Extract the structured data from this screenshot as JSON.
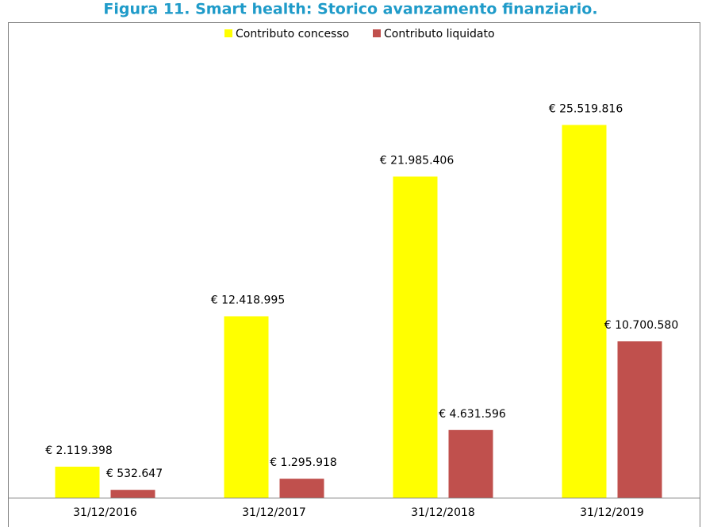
{
  "chart_data": {
    "type": "bar",
    "title": "Figura 11. Smart health: Storico avanzamento finanziario.",
    "categories": [
      "31/12/2016",
      "31/12/2017",
      "31/12/2018",
      "31/12/2019"
    ],
    "series": [
      {
        "name": "Contributo concesso",
        "color": "#ffff00",
        "values": [
          2119398,
          12418995,
          21985406,
          25519816
        ],
        "value_labels": [
          "€ 2.119.398",
          "€ 12.418.995",
          "€ 21.985.406",
          "€ 25.519.816"
        ]
      },
      {
        "name": "Contributo liquidato",
        "color": "#c0504d",
        "values": [
          532647,
          1295918,
          4631596,
          10700580
        ],
        "value_labels": [
          "€ 532.647",
          "€ 1.295.918",
          "€ 4.631.596",
          "€ 10.700.580"
        ]
      }
    ],
    "ylim": [
      0,
      30000000
    ],
    "legend": "top"
  }
}
